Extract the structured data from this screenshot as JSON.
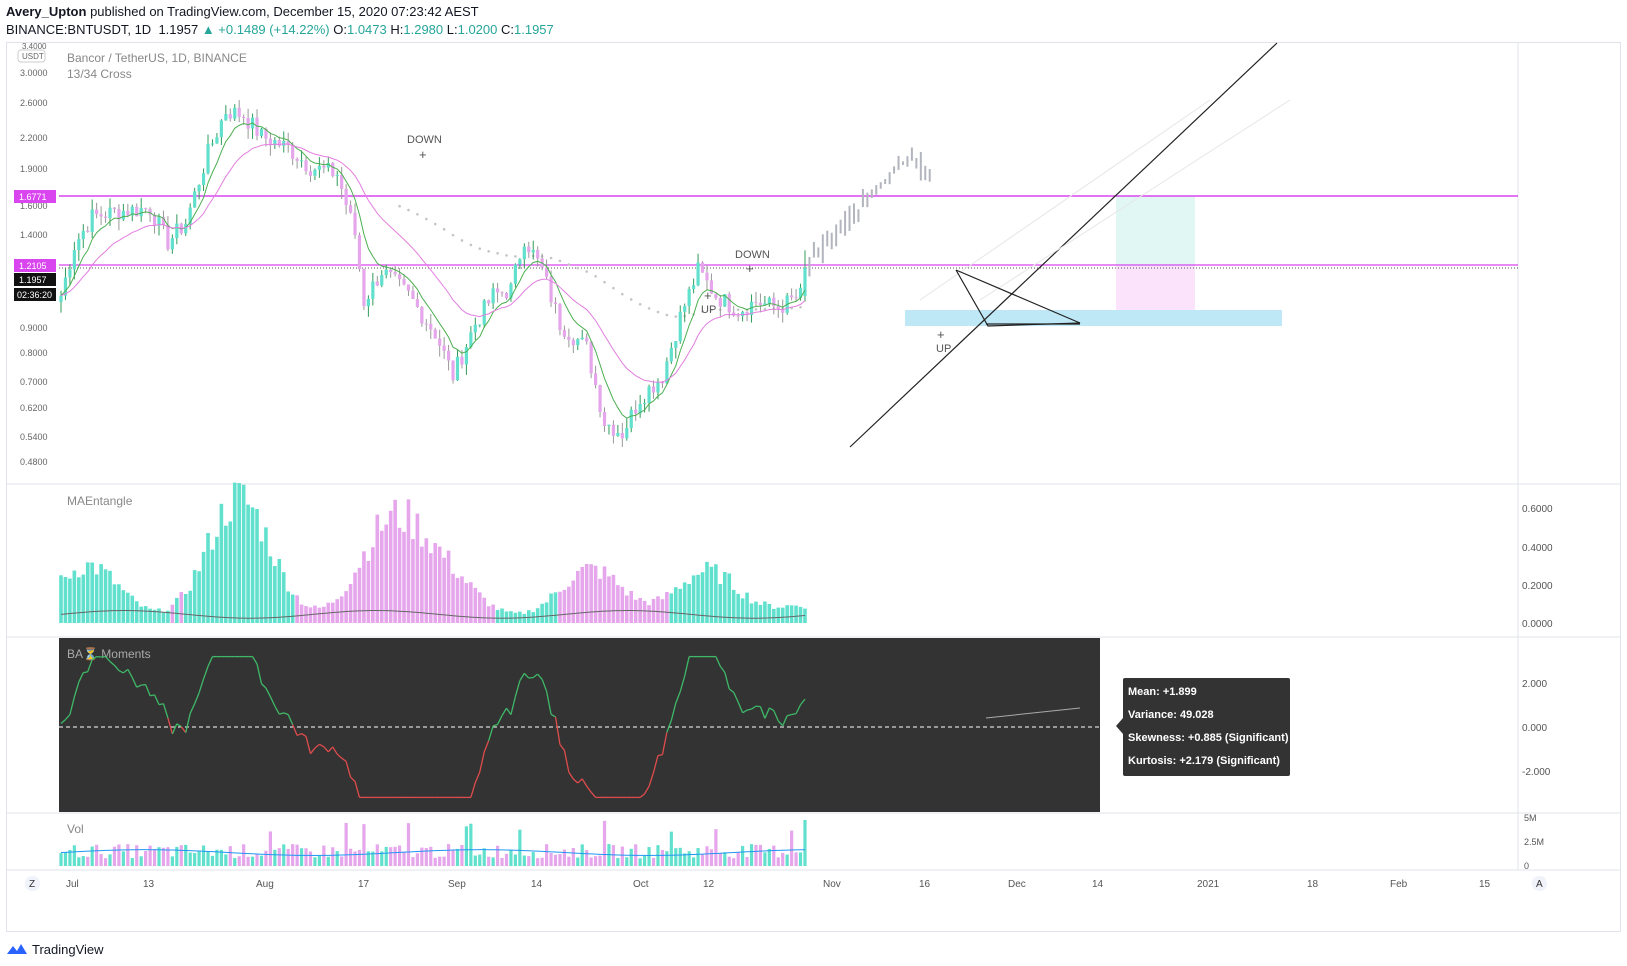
{
  "header": {
    "user": "Avery_Upton",
    "published_text": "published on TradingView.com, December 15, 2020 07:23:42 AEST",
    "symbol": "BINANCE:BNTUSDT, 1D",
    "last": "1.1957",
    "change": "▲ +0.1489 (+14.22%)",
    "o_label": "O:",
    "o": "1.0473",
    "h_label": "H:",
    "h": "1.2980",
    "l_label": "L:",
    "l": "1.0200",
    "c_label": "C:",
    "c": "1.1957"
  },
  "main_pane": {
    "title": "Bancor / TetherUS, 1D, BINANCE",
    "subtitle": "13/34 Cross",
    "currency": "USDT",
    "price_labels": {
      "top": "3.4000",
      "magenta_high": "1.6771",
      "magenta_low": "1.2105",
      "last": "1.1957",
      "countdown": "02:36:20"
    },
    "annotations": [
      {
        "text": "DOWN"
      },
      {
        "text": "DOWN"
      },
      {
        "text": "UP"
      },
      {
        "text": "UP"
      }
    ],
    "y_ticks": [
      "3.0000",
      "2.6000",
      "2.2000",
      "1.9000",
      "1.6000",
      "1.4000",
      "0.9000",
      "0.8000",
      "0.7000",
      "0.6200",
      "0.5400",
      "0.4800"
    ]
  },
  "ma_pane": {
    "title": "MAEntangle",
    "y_ticks": [
      "0.6000",
      "0.4000",
      "0.2000",
      "0.0000"
    ]
  },
  "bam_pane": {
    "title": "BA⏳ Moments",
    "y_ticks": [
      "2.000",
      "0.000",
      "-2.000"
    ],
    "stats": [
      "Mean: +1.899",
      "Variance: 49.028",
      "Skewness: +0.885 (Significant)",
      "Kurtosis: +2.179 (Significant)"
    ]
  },
  "vol_pane": {
    "title": "Vol",
    "y_ticks": [
      "5M",
      "2.5M",
      "0"
    ]
  },
  "time_axis": {
    "labels": [
      "Jul",
      "13",
      "Aug",
      "17",
      "Sep",
      "14",
      "Oct",
      "12",
      "Nov",
      "16",
      "Dec",
      "14",
      "2021",
      "18",
      "Feb",
      "15"
    ],
    "left_button": "Z",
    "right_button": "A"
  },
  "brand": "TradingView",
  "colors": {
    "up": "#62e0ce",
    "down": "#e5a6ec",
    "up_line": "#3fb968",
    "down_line": "#e04c4c",
    "magenta": "#d946ef",
    "ma_fast": "#4caf50",
    "ma_slow": "#e37ee0",
    "projection": "#b2b5be"
  },
  "chart_data": [
    {
      "type": "candlestick",
      "title": "Bancor / TetherUS, 1D, BINANCE",
      "subtitle": "13/34 Cross",
      "ylabel": "USDT",
      "ylim": [
        0.45,
        3.4
      ],
      "y_scale": "log",
      "x_range": [
        "2020-06-29",
        "2021-02-28"
      ],
      "last_bar": {
        "o": 1.0473,
        "h": 1.298,
        "l": 1.02,
        "c": 1.1957
      },
      "horizontal_levels": [
        1.6771,
        1.2105
      ],
      "approx_close_path": [
        [
          "2020-06-30",
          1.05
        ],
        [
          "2020-07-03",
          1.33
        ],
        [
          "2020-07-07",
          1.52
        ],
        [
          "2020-07-13",
          1.56
        ],
        [
          "2020-07-20",
          1.58
        ],
        [
          "2020-07-24",
          1.35
        ],
        [
          "2020-07-28",
          1.48
        ],
        [
          "2020-08-02",
          2.05
        ],
        [
          "2020-08-06",
          2.5
        ],
        [
          "2020-08-10",
          2.45
        ],
        [
          "2020-08-14",
          2.22
        ],
        [
          "2020-08-20",
          2.1
        ],
        [
          "2020-08-25",
          1.92
        ],
        [
          "2020-08-31",
          1.86
        ],
        [
          "2020-09-04",
          1.4
        ],
        [
          "2020-09-06",
          1.02
        ],
        [
          "2020-09-10",
          1.18
        ],
        [
          "2020-09-16",
          1.05
        ],
        [
          "2020-09-22",
          0.88
        ],
        [
          "2020-09-26",
          0.72
        ],
        [
          "2020-10-01",
          0.92
        ],
        [
          "2020-10-05",
          1.05
        ],
        [
          "2020-10-09",
          1.08
        ],
        [
          "2020-10-12",
          1.38
        ],
        [
          "2020-10-16",
          1.18
        ],
        [
          "2020-10-20",
          0.92
        ],
        [
          "2020-10-26",
          0.82
        ],
        [
          "2020-10-30",
          0.58
        ],
        [
          "2020-11-03",
          0.55
        ],
        [
          "2020-11-07",
          0.65
        ],
        [
          "2020-11-12",
          0.72
        ],
        [
          "2020-11-16",
          0.95
        ],
        [
          "2020-11-20",
          1.18
        ],
        [
          "2020-11-24",
          1.05
        ],
        [
          "2020-11-29",
          0.98
        ],
        [
          "2020-12-03",
          1.02
        ],
        [
          "2020-12-08",
          0.99
        ],
        [
          "2020-12-13",
          1.05
        ],
        [
          "2020-12-14",
          1.1957
        ]
      ]
    },
    {
      "type": "bar",
      "title": "MAEntangle",
      "ylim": [
        0,
        0.65
      ],
      "approx_peaks": [
        [
          "2020-07-06",
          0.28
        ],
        [
          "2020-08-09",
          0.63
        ],
        [
          "2020-09-12",
          0.48
        ],
        [
          "2020-09-24",
          0.22
        ],
        [
          "2020-10-27",
          0.26
        ],
        [
          "2020-11-22",
          0.25
        ],
        [
          "2020-12-14",
          0.07
        ]
      ]
    },
    {
      "type": "line",
      "title": "BA⏳ Moments",
      "ylim": [
        -3.2,
        3.2
      ],
      "stats": {
        "mean": 1.899,
        "variance": 49.028,
        "skewness": 0.885,
        "kurtosis": 2.179
      }
    },
    {
      "type": "bar",
      "title": "Vol",
      "ylim": [
        0,
        5000000
      ]
    }
  ]
}
